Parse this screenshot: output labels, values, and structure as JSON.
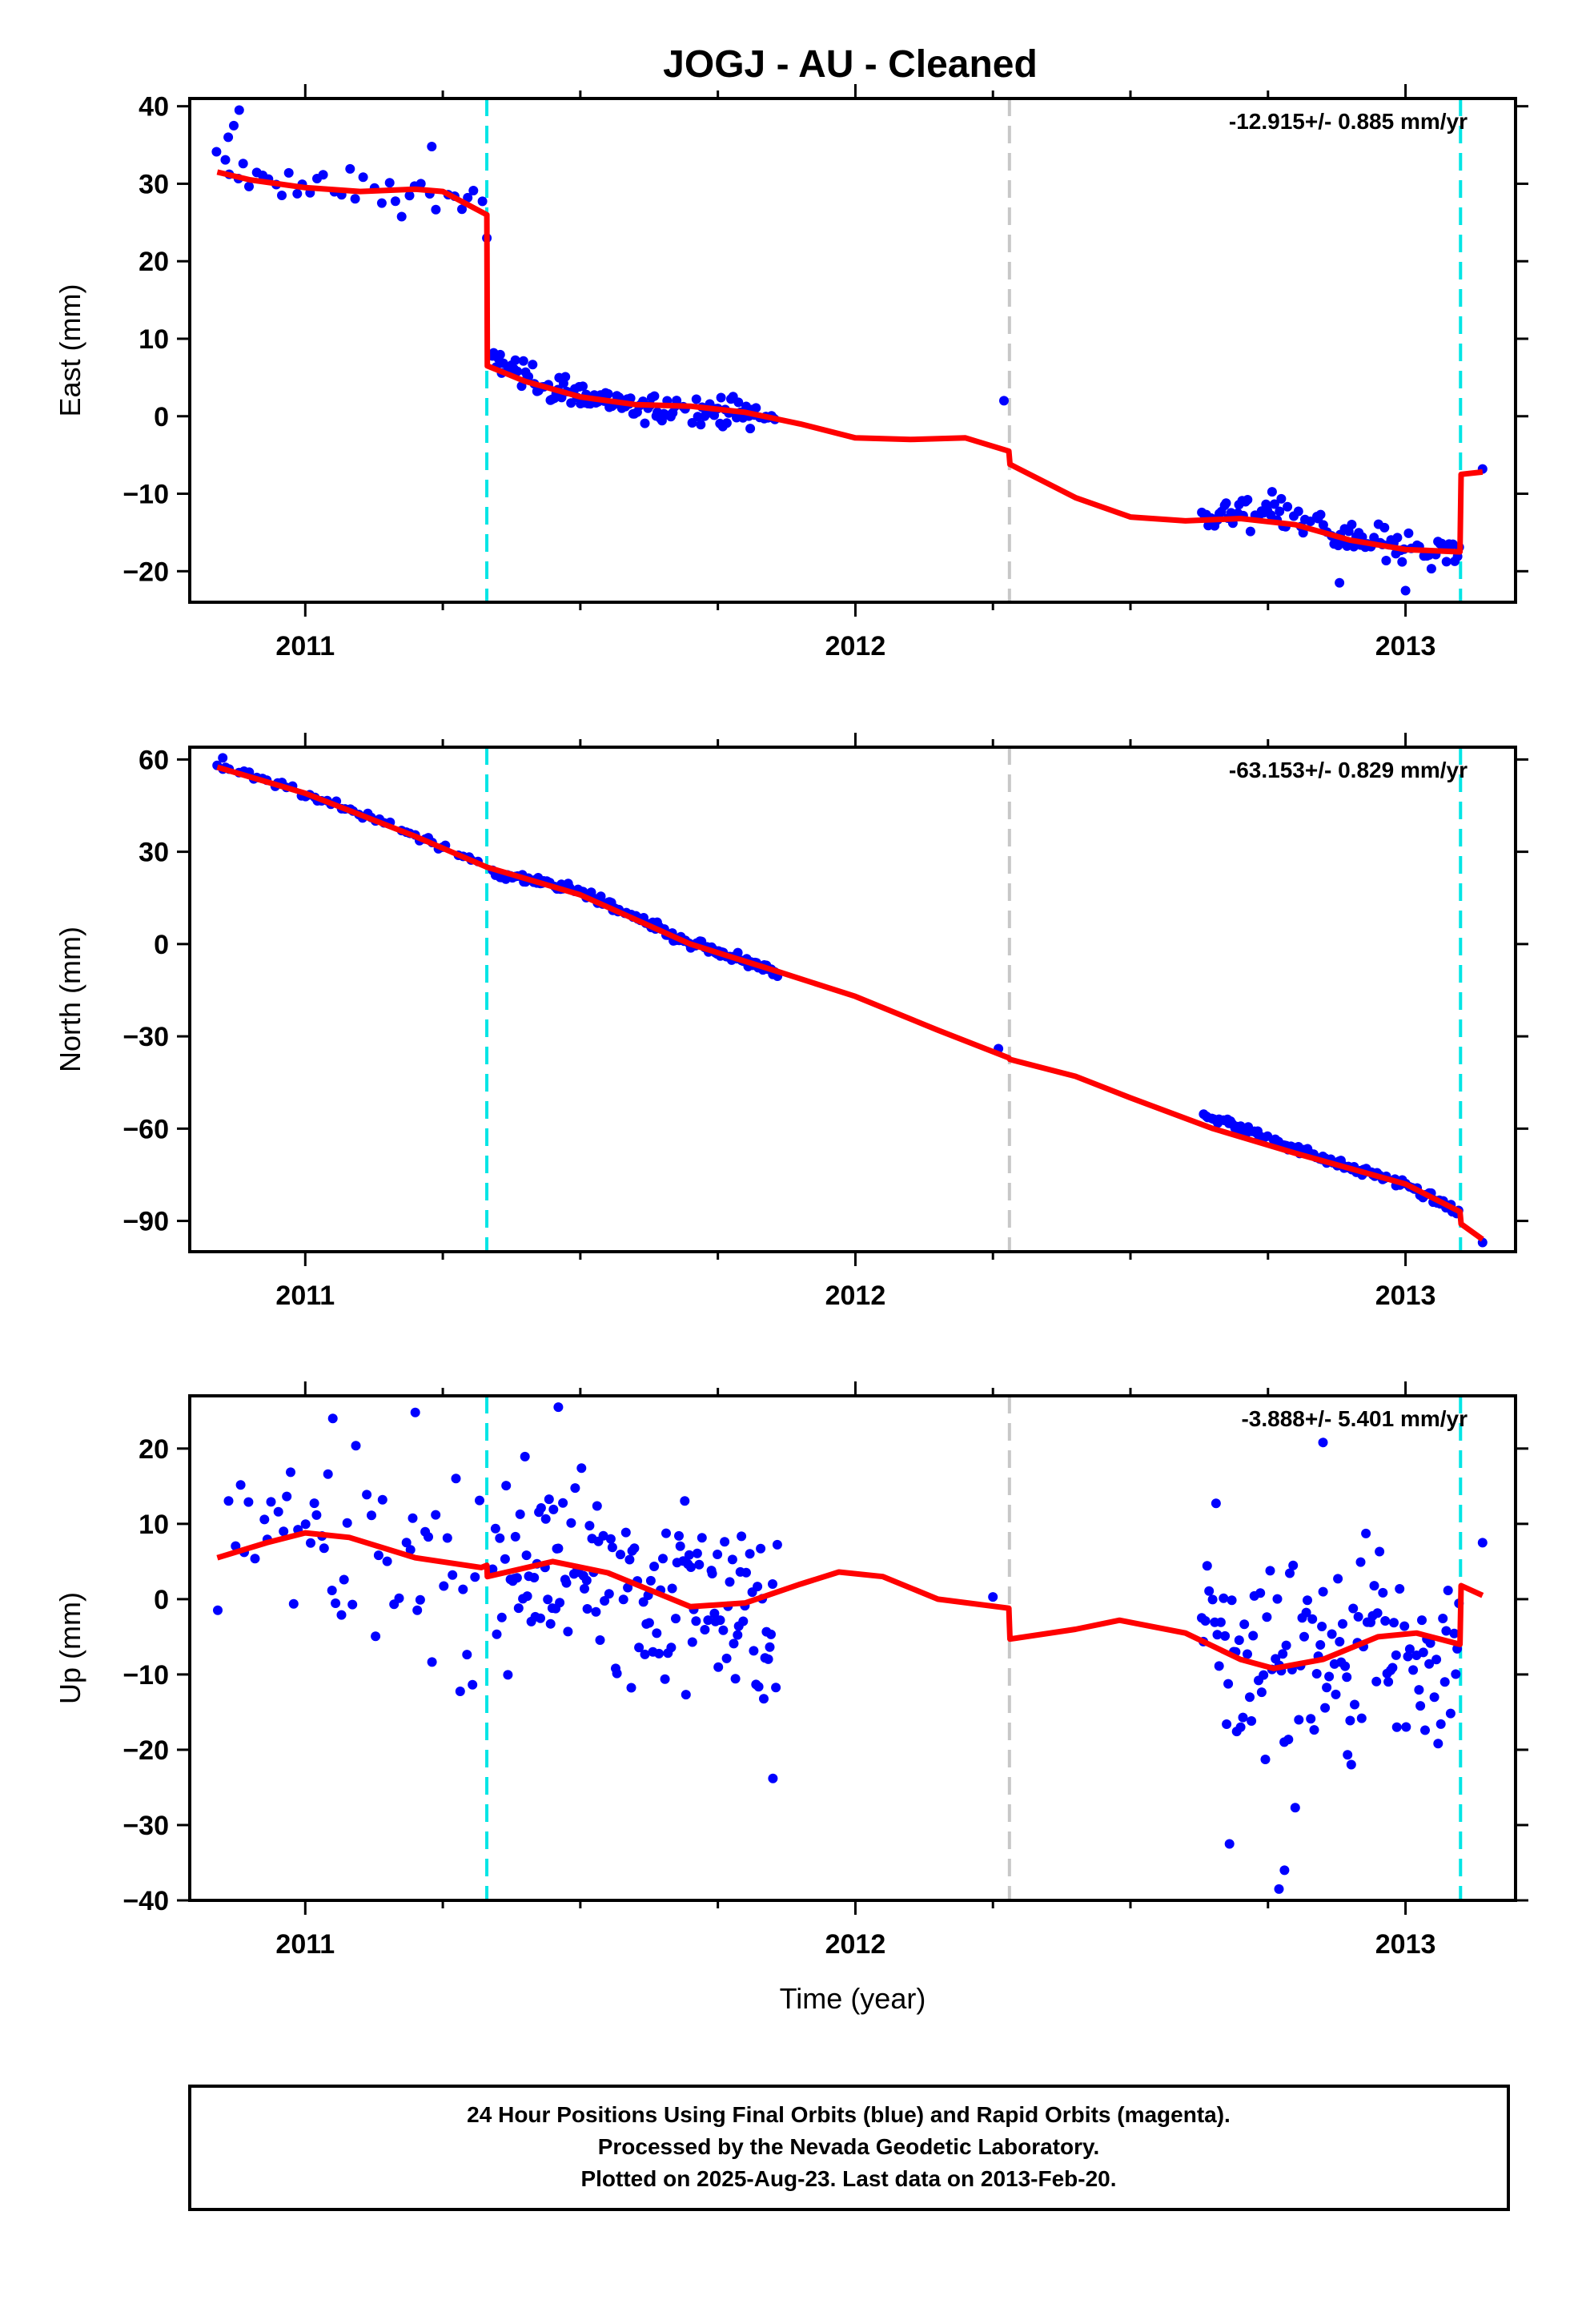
{
  "title": "JOGJ  - AU - Cleaned",
  "caption": {
    "lines": [
      "24 Hour Positions Using Final Orbits (blue) and Rapid Orbits (magenta).",
      "Processed by the Nevada Geodetic Laboratory.",
      "Plotted on 2025-Aug-23. Last data on 2013-Feb-20."
    ]
  },
  "colors": {
    "data_points": "#0000ff",
    "model_fit": "#ff0000",
    "equipment_change": "#00e5e5",
    "other_event": "#c8c8c8"
  },
  "chart_data": [
    {
      "type": "scatter",
      "name": "east",
      "ylabel": "East (mm)",
      "xlabel": "",
      "xlim": [
        2010.79,
        2013.2
      ],
      "ylim": [
        -24,
        41
      ],
      "yticks": [
        -20,
        -10,
        0,
        10,
        20,
        30,
        40
      ],
      "xticks": [
        2011,
        2012,
        2013
      ],
      "xtick_labels": [
        "2011",
        "2012",
        "2013"
      ],
      "xminor": [
        2011.25,
        2011.5,
        2011.75,
        2012.25,
        2012.5,
        2012.75
      ],
      "rate": "-12.915+/- 0.885 mm/yr",
      "events": [
        {
          "x": 2011.33,
          "kind": "equipment_change"
        },
        {
          "x": 2012.28,
          "kind": "other_event"
        },
        {
          "x": 2013.1,
          "kind": "equipment_change"
        }
      ],
      "model": [
        [
          2010.84,
          31.5
        ],
        [
          2010.9,
          30.5
        ],
        [
          2011.0,
          29.5
        ],
        [
          2011.1,
          29.0
        ],
        [
          2011.2,
          29.3
        ],
        [
          2011.25,
          29.0
        ],
        [
          2011.33,
          26.0
        ],
        [
          2011.331,
          6.5
        ],
        [
          2011.4,
          4.5
        ],
        [
          2011.5,
          2.5
        ],
        [
          2011.6,
          1.5
        ],
        [
          2011.7,
          1.3
        ],
        [
          2011.8,
          0.5
        ],
        [
          2011.9,
          -1.0
        ],
        [
          2012.0,
          -2.8
        ],
        [
          2012.1,
          -3.0
        ],
        [
          2012.2,
          -2.8
        ],
        [
          2012.279,
          -4.5
        ],
        [
          2012.281,
          -6.2
        ],
        [
          2012.4,
          -10.5
        ],
        [
          2012.5,
          -13.0
        ],
        [
          2012.6,
          -13.5
        ],
        [
          2012.7,
          -13.2
        ],
        [
          2012.8,
          -14.0
        ],
        [
          2012.9,
          -16.0
        ],
        [
          2013.0,
          -17.2
        ],
        [
          2013.099,
          -17.5
        ],
        [
          2013.101,
          -7.5
        ],
        [
          2013.14,
          -7.2
        ]
      ],
      "points": {
        "segments": [
          {
            "x0": 2010.84,
            "x1": 2011.32,
            "step": 0.012,
            "trend": [
              [
                2010.84,
                32.0
              ],
              [
                2010.9,
                31.0
              ],
              [
                2011.0,
                29.5
              ],
              [
                2011.2,
                29.0
              ],
              [
                2011.32,
                27.0
              ]
            ],
            "spread": 2.5
          },
          {
            "x0": 2011.34,
            "x1": 2011.86,
            "step": 0.0035,
            "trend": [
              [
                2011.34,
                7.5
              ],
              [
                2011.45,
                3.5
              ],
              [
                2011.6,
                1.0
              ],
              [
                2011.75,
                1.0
              ],
              [
                2011.86,
                -0.5
              ]
            ],
            "spread": 1.8
          },
          {
            "x0": 2012.63,
            "x1": 2013.1,
            "step": 0.004,
            "trend": [
              [
                2012.63,
                -13.0
              ],
              [
                2012.75,
                -11.5
              ],
              [
                2012.9,
                -16.0
              ],
              [
                2013.1,
                -17.5
              ]
            ],
            "spread": 2.0
          }
        ],
        "extra": [
          [
            2010.87,
            37.5
          ],
          [
            2010.88,
            39.5
          ],
          [
            2010.86,
            36.0
          ],
          [
            2011.23,
            34.8
          ],
          [
            2011.33,
            23.0
          ],
          [
            2012.27,
            2.0
          ],
          [
            2013.14,
            -6.8
          ],
          [
            2012.88,
            -21.5
          ],
          [
            2013.0,
            -22.5
          ]
        ]
      }
    },
    {
      "type": "scatter",
      "name": "north",
      "ylabel": "North (mm)",
      "xlabel": "",
      "xlim": [
        2010.79,
        2013.2
      ],
      "ylim": [
        -100,
        64
      ],
      "yticks": [
        -90,
        -60,
        -30,
        0,
        30,
        60
      ],
      "xticks": [
        2011,
        2012,
        2013
      ],
      "xtick_labels": [
        "2011",
        "2012",
        "2013"
      ],
      "xminor": [
        2011.25,
        2011.5,
        2011.75,
        2012.25,
        2012.5,
        2012.75
      ],
      "rate": "-63.153+/- 0.829 mm/yr",
      "events": [
        {
          "x": 2011.33,
          "kind": "equipment_change"
        },
        {
          "x": 2012.28,
          "kind": "other_event"
        },
        {
          "x": 2013.1,
          "kind": "equipment_change"
        }
      ],
      "model": [
        [
          2010.84,
          57.5
        ],
        [
          2011.0,
          49.0
        ],
        [
          2011.2,
          35.0
        ],
        [
          2011.33,
          25.0
        ],
        [
          2011.5,
          16.0
        ],
        [
          2011.7,
          0.0
        ],
        [
          2011.86,
          -9.0
        ],
        [
          2012.0,
          -17.0
        ],
        [
          2012.15,
          -28.0
        ],
        [
          2012.279,
          -37.0
        ],
        [
          2012.281,
          -37.5
        ],
        [
          2012.4,
          -43.0
        ],
        [
          2012.5,
          -50.0
        ],
        [
          2012.65,
          -60.0
        ],
        [
          2012.8,
          -68.0
        ],
        [
          2013.0,
          -78.0
        ],
        [
          2013.099,
          -87.0
        ],
        [
          2013.101,
          -91.0
        ],
        [
          2013.14,
          -96.0
        ]
      ],
      "points": {
        "segments": [
          {
            "x0": 2010.84,
            "x1": 2011.32,
            "step": 0.008,
            "trend": [
              [
                2010.84,
                58.5
              ],
              [
                2011.0,
                49.0
              ],
              [
                2011.2,
                35.5
              ],
              [
                2011.32,
                26.0
              ]
            ],
            "spread": 1.3
          },
          {
            "x0": 2011.34,
            "x1": 2011.86,
            "step": 0.003,
            "trend": [
              [
                2011.34,
                23.5
              ],
              [
                2011.5,
                17.0
              ],
              [
                2011.7,
                0.0
              ],
              [
                2011.86,
                -9.5
              ]
            ],
            "spread": 1.6
          },
          {
            "x0": 2012.63,
            "x1": 2013.1,
            "step": 0.0035,
            "trend": [
              [
                2012.63,
                -55.0
              ],
              [
                2012.8,
                -66.5
              ],
              [
                2013.0,
                -78.5
              ],
              [
                2013.1,
                -87.5
              ]
            ],
            "spread": 1.5
          }
        ],
        "extra": [
          [
            2010.85,
            60.5
          ],
          [
            2012.26,
            -34.0
          ],
          [
            2013.14,
            -97.0
          ]
        ]
      }
    },
    {
      "type": "scatter",
      "name": "up",
      "ylabel": "Up (mm)",
      "xlabel": "Time (year)",
      "xlim": [
        2010.79,
        2013.2
      ],
      "ylim": [
        -40,
        27
      ],
      "yticks": [
        -40,
        -30,
        -20,
        -10,
        0,
        10,
        20
      ],
      "xticks": [
        2011,
        2012,
        2013
      ],
      "xtick_labels": [
        "2011",
        "2012",
        "2013"
      ],
      "xminor": [
        2011.25,
        2011.5,
        2011.75,
        2012.25,
        2012.5,
        2012.75
      ],
      "rate": "-3.888+/- 5.401 mm/yr",
      "events": [
        {
          "x": 2011.33,
          "kind": "equipment_change"
        },
        {
          "x": 2012.28,
          "kind": "other_event"
        },
        {
          "x": 2013.1,
          "kind": "equipment_change"
        }
      ],
      "model": [
        [
          2010.84,
          5.5
        ],
        [
          2010.93,
          7.5
        ],
        [
          2011.0,
          8.8
        ],
        [
          2011.08,
          8.2
        ],
        [
          2011.2,
          5.5
        ],
        [
          2011.32,
          4.2
        ],
        [
          2011.33,
          4.5
        ],
        [
          2011.331,
          3.0
        ],
        [
          2011.45,
          5.0
        ],
        [
          2011.55,
          3.5
        ],
        [
          2011.7,
          -1.0
        ],
        [
          2011.8,
          -0.5
        ],
        [
          2011.9,
          2.0
        ],
        [
          2011.97,
          3.6
        ],
        [
          2012.05,
          3.0
        ],
        [
          2012.15,
          0.0
        ],
        [
          2012.279,
          -1.2
        ],
        [
          2012.281,
          -5.3
        ],
        [
          2012.4,
          -4.0
        ],
        [
          2012.48,
          -2.8
        ],
        [
          2012.6,
          -4.5
        ],
        [
          2012.7,
          -8.0
        ],
        [
          2012.76,
          -9.2
        ],
        [
          2012.85,
          -8.0
        ],
        [
          2012.95,
          -5.0
        ],
        [
          2013.02,
          -4.5
        ],
        [
          2013.099,
          -6.0
        ],
        [
          2013.101,
          1.8
        ],
        [
          2013.14,
          0.5
        ]
      ],
      "points": {
        "segments": [
          {
            "x0": 2010.84,
            "x1": 2011.32,
            "step": 0.007,
            "trend": [
              [
                2010.84,
                6.0
              ],
              [
                2011.0,
                9.0
              ],
              [
                2011.2,
                5.5
              ],
              [
                2011.32,
                4.0
              ]
            ],
            "spread": 13.0
          },
          {
            "x0": 2011.34,
            "x1": 2011.86,
            "step": 0.0028,
            "trend": [
              [
                2011.34,
                3.0
              ],
              [
                2011.45,
                5.0
              ],
              [
                2011.7,
                -1.0
              ],
              [
                2011.86,
                -1.0
              ]
            ],
            "spread": 12.0
          },
          {
            "x0": 2012.63,
            "x1": 2013.1,
            "step": 0.0032,
            "trend": [
              [
                2012.63,
                -6.0
              ],
              [
                2012.76,
                -9.0
              ],
              [
                2012.95,
                -5.0
              ],
              [
                2013.1,
                -6.0
              ]
            ],
            "spread": 15.0
          }
        ],
        "extra": [
          [
            2011.46,
            25.5
          ],
          [
            2011.2,
            24.8
          ],
          [
            2011.05,
            24.0
          ],
          [
            2012.25,
            0.3
          ],
          [
            2012.77,
            -38.5
          ],
          [
            2012.78,
            -36.0
          ],
          [
            2012.85,
            20.8
          ],
          [
            2013.14,
            7.5
          ],
          [
            2011.85,
            -23.8
          ],
          [
            2012.68,
            -32.5
          ]
        ]
      }
    }
  ]
}
